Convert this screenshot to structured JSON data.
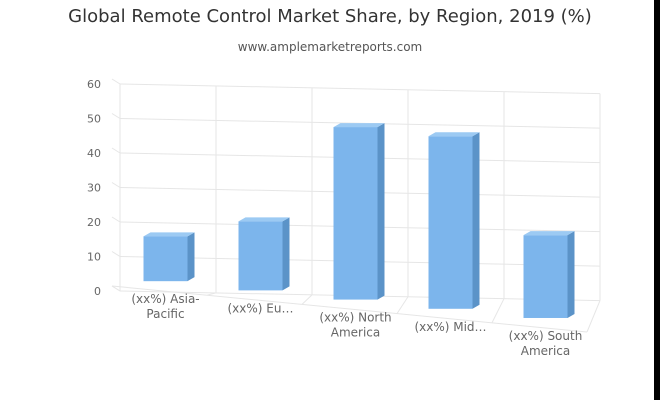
{
  "chart_data": {
    "type": "bar",
    "title": "Global Remote Control Market Share, by Region, 2019 (%)",
    "subtitle": "www.amplemarketreports.com",
    "categories": [
      "(xx%) Asia-Pacific",
      "(xx%) Europe",
      "(xx%) North America",
      "(xx%) Middle East & Africa",
      "(xx%) South America"
    ],
    "category_labels_shown": [
      [
        "(xx%) Asia-",
        "Pacific"
      ],
      [
        "(xx%) Eu…"
      ],
      [
        "(xx%) North",
        "America"
      ],
      [
        "(xx%) Mid…"
      ],
      [
        "(xx%) South",
        "America"
      ]
    ],
    "values": [
      13,
      20,
      50,
      50,
      24
    ],
    "ylim": [
      0,
      60
    ],
    "yticks": [
      "0",
      "10",
      "20",
      "30",
      "40",
      "50",
      "60"
    ],
    "xlabel": "",
    "ylabel": "",
    "grid": true,
    "legend": "none",
    "style": "3d",
    "colors": {
      "bar_front": "#7cb5ec",
      "bar_side": "#5b93c8",
      "bar_top": "#9ccaf3",
      "grid": "#e6e6e6",
      "axis_text": "#666666"
    }
  }
}
